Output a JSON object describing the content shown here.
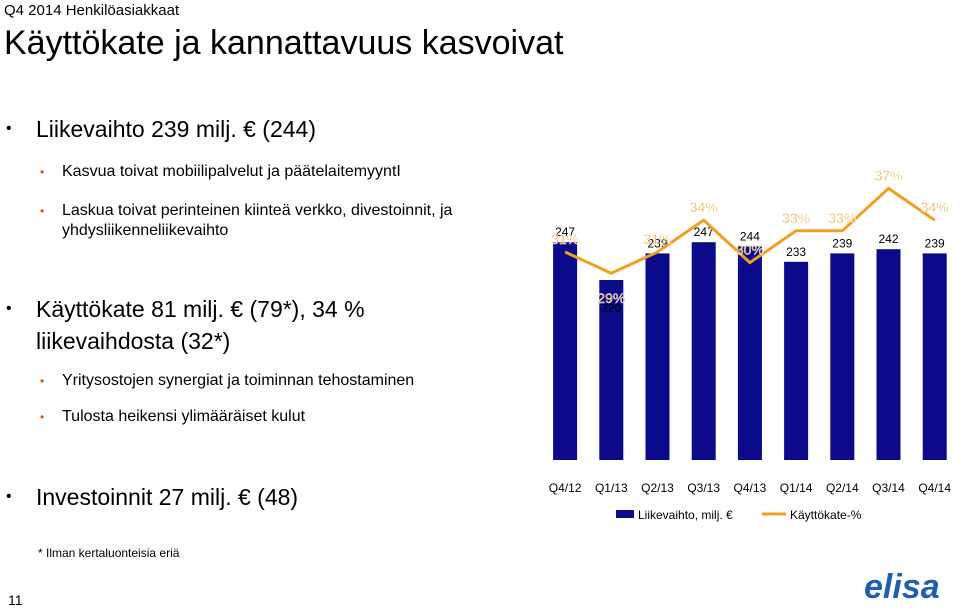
{
  "header": {
    "subtitle": "Q4 2014 Henkilöasiakkaat",
    "title": "Käyttökate ja kannattavuus kasvoivat"
  },
  "bullets": {
    "revenue": {
      "main": "Liikevaihto 239 milj. € (244)",
      "subs": [
        "Kasvua toivat mobiilipalvelut ja päätelaitemyyntI",
        "Laskua toivat perinteinen kiinteä verkko, divestoinnit, ja",
        "yhdysliikenneliikevaihto"
      ]
    },
    "ebitda": {
      "line1": "Käyttökate 81 milj. € (79*), 34 %",
      "line2": "liikevaihdosta (32*)",
      "subs": [
        "Yritysostojen synergiat ja toiminnan tehostaminen",
        "Tulosta heikensi ylimääräiset kulut"
      ]
    },
    "capex": {
      "main": "Investoinnit 27 milj. € (48)"
    }
  },
  "footnote": "* Ilman kertaluonteisia eriä",
  "page_number": "11",
  "logo_text": "elisa",
  "colors": {
    "bar": "#0a0a8a",
    "line": "#f0a020",
    "accent": "#d35400",
    "logo": "#1e5fb4"
  },
  "chart_data": {
    "type": "bar",
    "categories": [
      "Q4/12",
      "Q1/13",
      "Q2/13",
      "Q3/13",
      "Q4/13",
      "Q1/14",
      "Q2/14",
      "Q3/14",
      "Q4/14"
    ],
    "series": [
      {
        "name": "Liikevaihto, milj. €",
        "type": "bar",
        "values": [
          247,
          220,
          239,
          247,
          244,
          233,
          239,
          242,
          239
        ]
      },
      {
        "name": "Käyttökate-%",
        "type": "line",
        "values": [
          31,
          29,
          31,
          34,
          30,
          33,
          33,
          37,
          34
        ],
        "labels": [
          "31%",
          "29%",
          "31%",
          "34%",
          "30%",
          "33%",
          "33%",
          "37%",
          "34%"
        ]
      }
    ],
    "legend": {
      "position": "bottom",
      "entries": [
        "Liikevaihto, milj. €",
        "Käyttökate-%"
      ]
    }
  }
}
